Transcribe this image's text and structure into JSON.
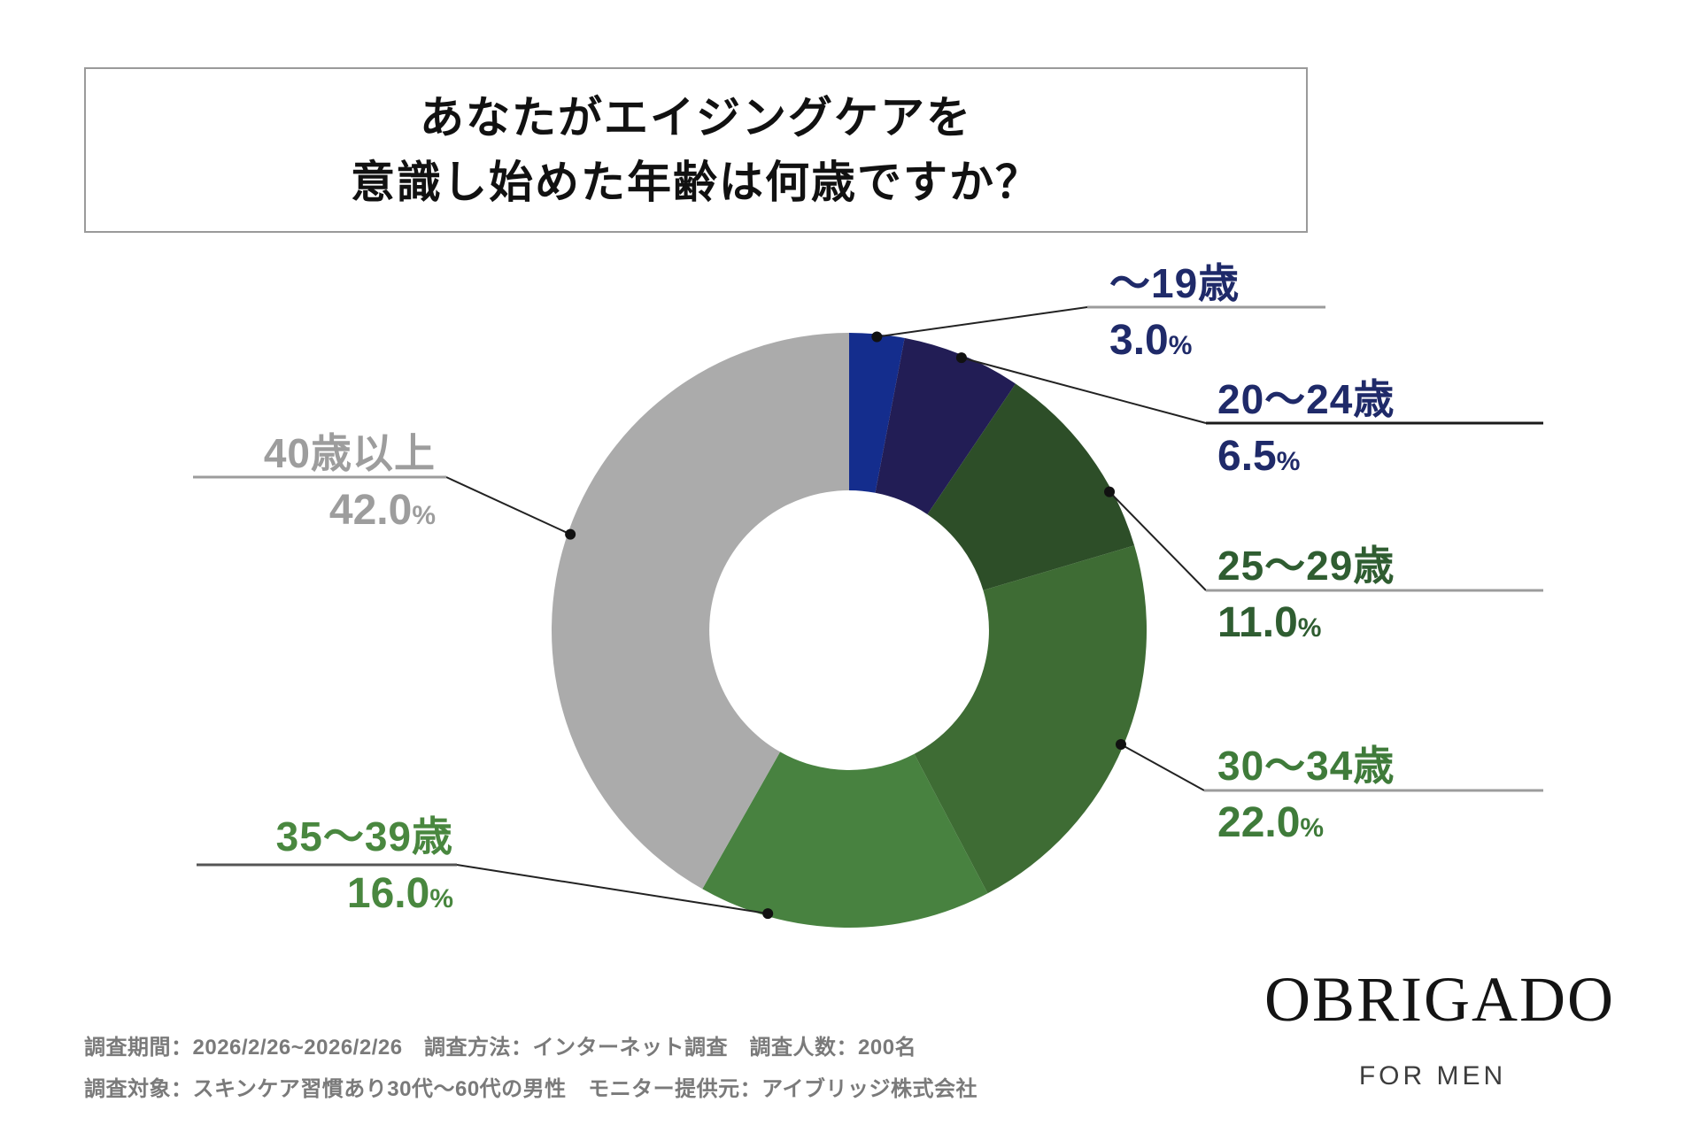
{
  "title": {
    "line1": "あなたがエイジングケアを",
    "line2": "意識し始めた年齢は何歳ですか？"
  },
  "chart_data": {
    "type": "pie",
    "style": "donut",
    "title": "あなたがエイジングケアを意識し始めた年齢は何歳ですか？",
    "unit": "%",
    "hole_ratio": 0.47,
    "start_angle_deg": 0,
    "direction": "clockwise",
    "categories": [
      "～19歳",
      "20～24歳",
      "25～29歳",
      "30～34歳",
      "35～39歳",
      "40歳以上"
    ],
    "values": [
      3.0,
      6.5,
      11.0,
      22.0,
      16.0,
      42.0
    ],
    "segments": [
      {
        "label": "～19歳",
        "value": 3.0,
        "pct": "3.0",
        "color": "#142d8d",
        "label_color": "#1f2a69"
      },
      {
        "label": "20～24歳",
        "value": 6.5,
        "pct": "6.5",
        "color": "#221d55",
        "label_color": "#1f2a69"
      },
      {
        "label": "25～29歳",
        "value": 11.0,
        "pct": "11.0",
        "color": "#2d4e28",
        "label_color": "#2f5d31"
      },
      {
        "label": "30～34歳",
        "value": 22.0,
        "pct": "22.0",
        "color": "#3e6c34",
        "label_color": "#3f7b3a"
      },
      {
        "label": "35～39歳",
        "value": 16.0,
        "pct": "16.0",
        "color": "#488240",
        "label_color": "#49873f"
      },
      {
        "label": "40歳以上",
        "value": 42.0,
        "pct": "42.0",
        "color": "#ababab",
        "label_color": "#9d9d9d"
      }
    ]
  },
  "footer": {
    "line1": "調査期間：2026/2/26~2026/2/26　調査方法：インターネット調査　調査人数：200名",
    "line2": "調査対象：スキンケア習慣あり30代～60代の男性　モニター提供元：アイブリッジ株式会社"
  },
  "logo": {
    "name": "OBRIGADO",
    "tagline": "FOR MEN"
  }
}
